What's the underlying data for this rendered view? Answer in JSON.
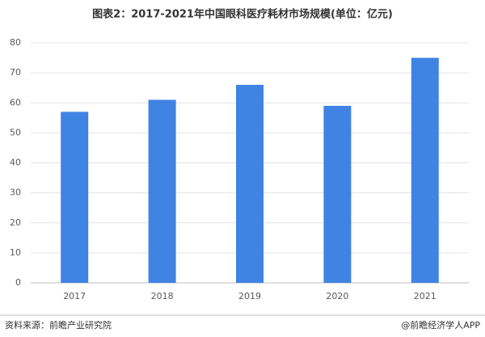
{
  "chart_data": {
    "type": "bar",
    "title": "图表2：2017-2021年中国眼科医疗耗材市场规模(单位：亿元)",
    "categories": [
      "2017",
      "2018",
      "2019",
      "2020",
      "2021"
    ],
    "values": [
      57,
      61,
      66,
      59,
      75
    ],
    "color": "#3f83e3",
    "ylim": [
      0,
      80
    ],
    "yticks": [
      0,
      10,
      20,
      30,
      40,
      50,
      60,
      70,
      80
    ],
    "grid": true,
    "source": "资料来源：前瞻产业研究院",
    "credit": "@前瞻经济学人APP"
  }
}
